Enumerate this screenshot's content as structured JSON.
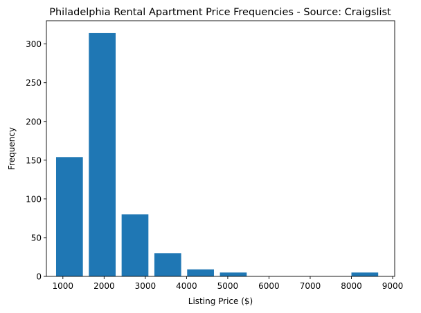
{
  "chart_data": {
    "type": "bar",
    "title": "Philadelphia Rental Apartment Price Frequencies - Source: Craigslist",
    "xlabel": "Listing Price ($)",
    "ylabel": "Frequency",
    "bins": [
      {
        "start": 835,
        "end": 1485,
        "value": 154
      },
      {
        "start": 1630,
        "end": 2280,
        "value": 314
      },
      {
        "start": 2425,
        "end": 3075,
        "value": 80
      },
      {
        "start": 3220,
        "end": 3870,
        "value": 30
      },
      {
        "start": 4015,
        "end": 4665,
        "value": 9
      },
      {
        "start": 4810,
        "end": 5460,
        "value": 5
      },
      {
        "start": 8000,
        "end": 8650,
        "value": 5
      }
    ],
    "xlim": [
      600,
      9050
    ],
    "ylim": [
      0,
      330
    ],
    "xticks": [
      1000,
      2000,
      3000,
      4000,
      5000,
      6000,
      7000,
      8000,
      9000
    ],
    "yticks": [
      0,
      50,
      100,
      150,
      200,
      250,
      300
    ],
    "bar_color": "#1f77b4",
    "grid": false
  }
}
